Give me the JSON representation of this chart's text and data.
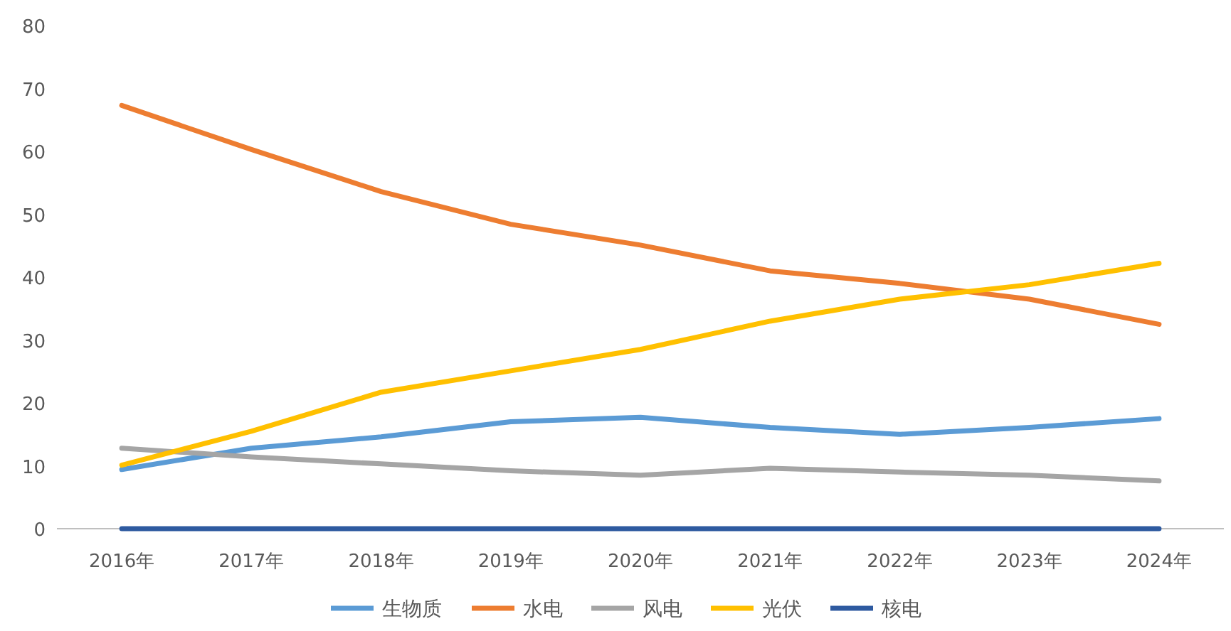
{
  "chart_data": {
    "type": "line",
    "categories": [
      "2016年",
      "2017年",
      "2018年",
      "2019年",
      "2020年",
      "2021年",
      "2022年",
      "2023年",
      "2024年"
    ],
    "ylim": [
      0,
      80
    ],
    "yticks": [
      0,
      10,
      20,
      30,
      40,
      50,
      60,
      70,
      80
    ],
    "grid": false,
    "legend": "bottom",
    "marker": "none",
    "line_style": "solid",
    "series": [
      {
        "name": "生物质",
        "color": "#5b9bd5",
        "values": [
          9.4,
          12.8,
          14.6,
          17.0,
          17.7,
          16.1,
          15.0,
          16.1,
          17.5
        ]
      },
      {
        "name": "水电",
        "color": "#ed7d31",
        "values": [
          67.3,
          60.3,
          53.6,
          48.4,
          45.1,
          41.0,
          39.0,
          36.5,
          32.5
        ]
      },
      {
        "name": "风电",
        "color": "#a5a5a5",
        "values": [
          12.8,
          11.4,
          10.3,
          9.2,
          8.5,
          9.6,
          9.0,
          8.5,
          7.6
        ]
      },
      {
        "name": "光伏",
        "color": "#ffc000",
        "values": [
          10.1,
          15.5,
          21.7,
          25.1,
          28.5,
          33.0,
          36.5,
          38.8,
          42.2
        ]
      },
      {
        "name": "核电",
        "color": "#2e5aa0",
        "values": [
          0,
          0,
          0,
          0,
          0,
          0,
          0,
          0,
          0
        ]
      }
    ]
  }
}
